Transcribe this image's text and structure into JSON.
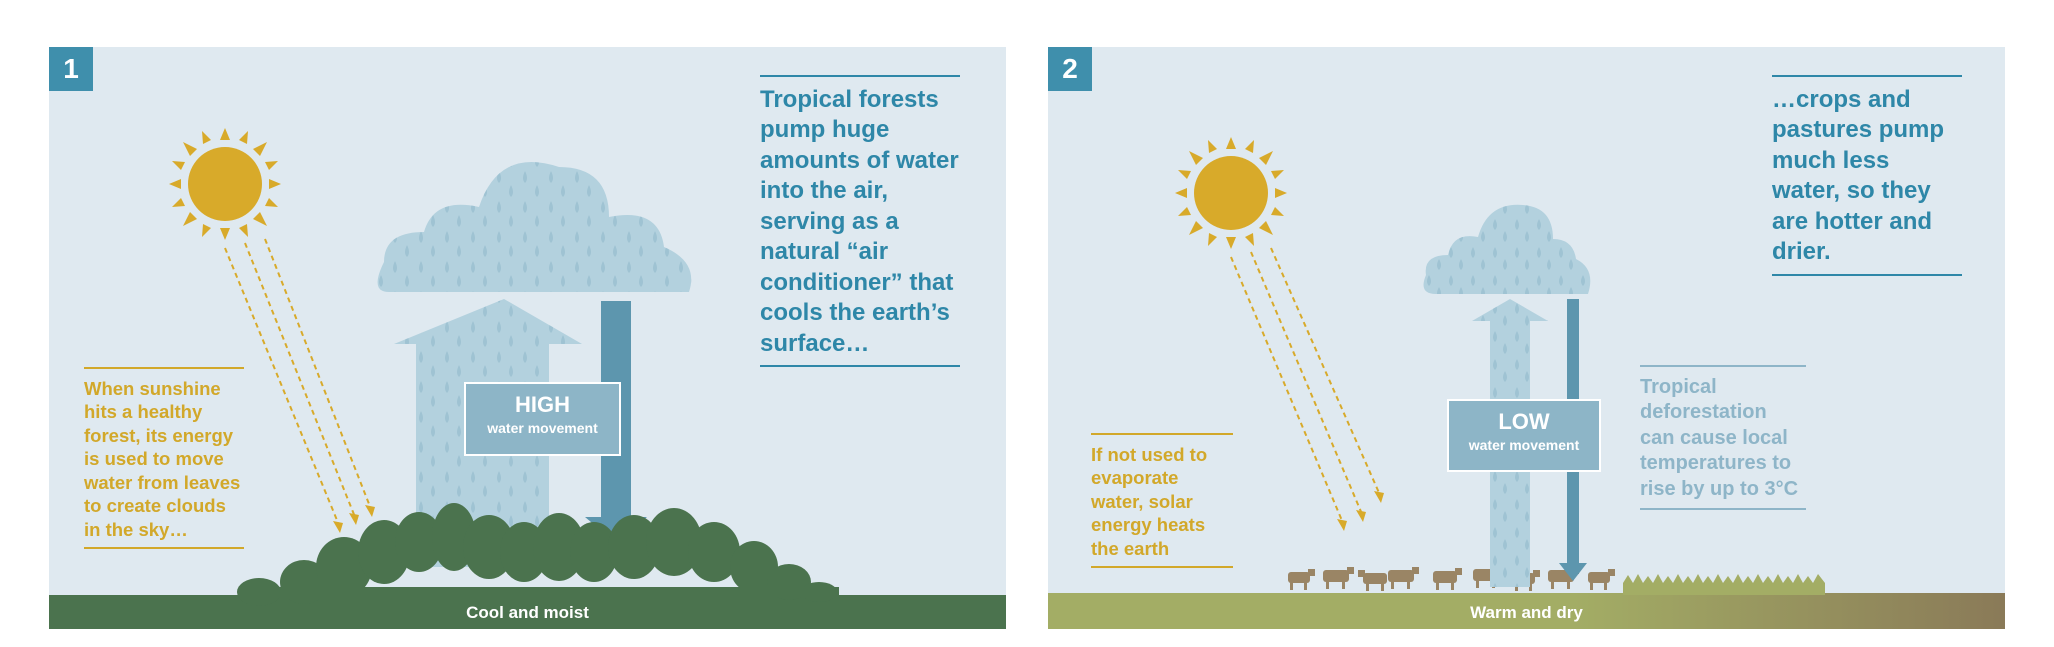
{
  "panels": [
    {
      "number": "1",
      "ground_label": "Cool and moist",
      "main_callout": "Tropical forests pump huge amounts of water into the air, serving as a natural “air conditioner” that cools the earth’s surface…",
      "left_callout": "When sunshine hits a healthy forest, its energy is used to move water from leaves to create clouds in the sky…",
      "water_movement_level": "HIGH",
      "water_movement_label": "water movement"
    },
    {
      "number": "2",
      "ground_label": "Warm and dry",
      "main_callout": "…crops and pastures pump much less water, so they are hotter and drier.",
      "left_callout": "If not used to evaporate water, solar energy heats the earth",
      "side_callout": "Tropical deforestation can cause local temperatures to rise by up to 3°C",
      "water_movement_level": "LOW",
      "water_movement_label": "water movement"
    }
  ],
  "colors": {
    "panel_background": "#dfe9f0",
    "badge": "#3f8fac",
    "forest_ground": "#4b734e",
    "pasture_ground_start": "#a3ad65",
    "pasture_ground_end": "#8a7a58",
    "sun": "#d8aa2a",
    "cloud": "#b3d1de",
    "arrow_down": "#5d96ae",
    "callout_blue": "#2e87a8",
    "callout_yellow": "#d2a82a",
    "callout_grey": "#8eb5c8"
  },
  "icons": [
    "sun-icon",
    "cloud-icon",
    "up-arrow-icon",
    "down-arrow-icon",
    "tree-icon",
    "cow-icon",
    "crop-icon"
  ]
}
